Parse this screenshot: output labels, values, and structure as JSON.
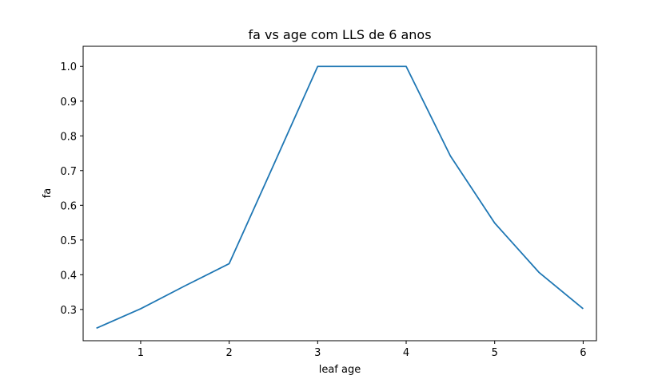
{
  "chart_data": {
    "type": "line",
    "title": "fa vs age com LLS de 6 anos",
    "xlabel": "leaf age",
    "ylabel": "fa",
    "xlim": [
      0.35,
      6.15
    ],
    "ylim": [
      0.21,
      1.058
    ],
    "xticks": [
      1,
      2,
      3,
      4,
      5,
      6
    ],
    "xtick_labels": [
      "1",
      "2",
      "3",
      "4",
      "5",
      "6"
    ],
    "yticks": [
      0.3,
      0.4,
      0.5,
      0.6,
      0.7,
      0.8,
      0.9,
      1.0
    ],
    "ytick_labels": [
      "0.3",
      "0.4",
      "0.5",
      "0.6",
      "0.7",
      "0.8",
      "0.9",
      "1.0"
    ],
    "grid": false,
    "series": [
      {
        "color": "#1f77b4",
        "x": [
          0.5,
          1.0,
          1.5,
          2.0,
          2.5,
          3.0,
          3.5,
          4.0,
          4.5,
          5.0,
          5.5,
          6.0
        ],
        "y": [
          0.246,
          0.302,
          0.368,
          0.432,
          0.715,
          1.0,
          1.0,
          1.0,
          0.742,
          0.549,
          0.407,
          0.302
        ]
      }
    ]
  }
}
